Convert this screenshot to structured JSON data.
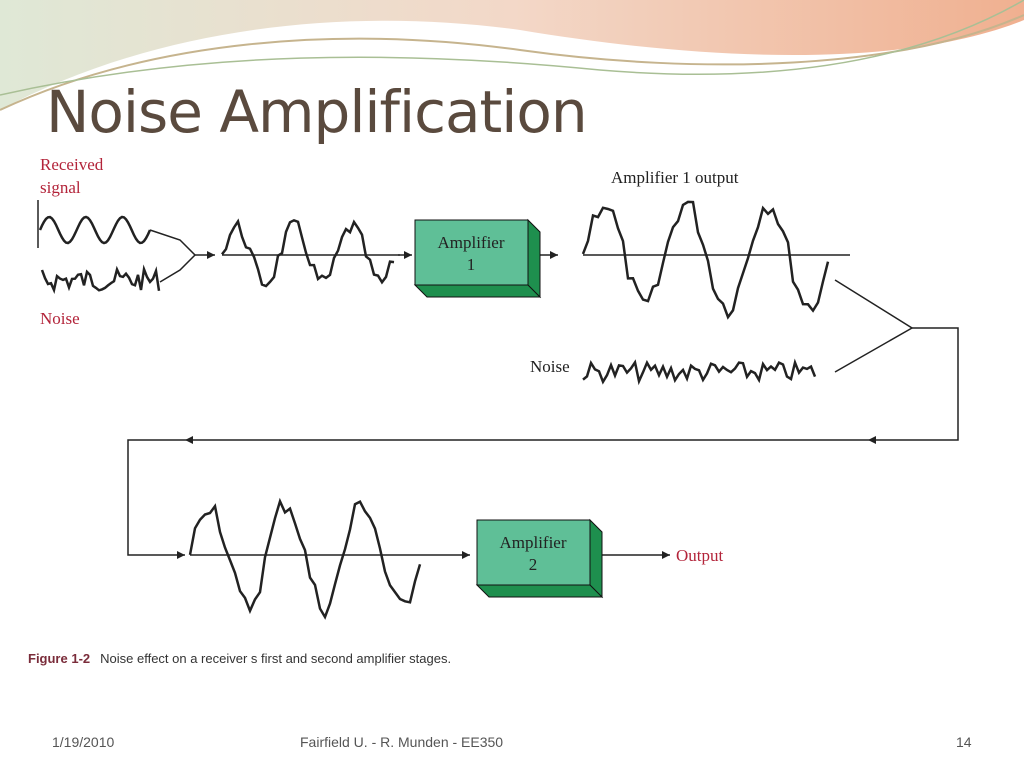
{
  "title": "Noise Amplification",
  "diagram": {
    "received_signal": "Received signal",
    "noise_in": "Noise",
    "amplifier1": "Amplifier 1",
    "amplifier1_output": "Amplifier 1 output",
    "noise_mid": "Noise",
    "amplifier2": "Amplifier 2",
    "output": "Output"
  },
  "caption": {
    "label": "Figure 1-2",
    "text": "Noise effect on a receiver s first and second amplifier stages."
  },
  "footer": {
    "date": "1/19/2010",
    "author": "Fairfield U. -  R. Munden - EE350",
    "page": "14"
  }
}
